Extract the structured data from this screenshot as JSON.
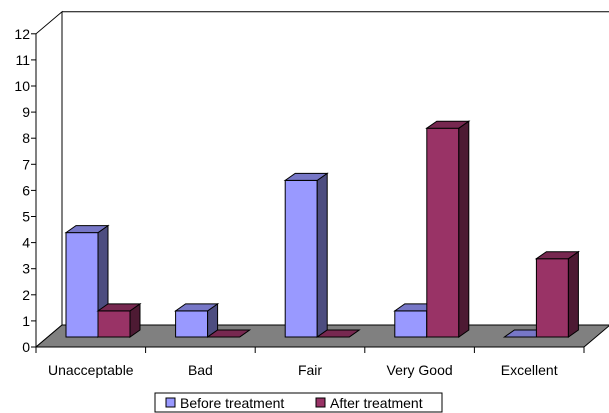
{
  "chart_data": {
    "type": "bar",
    "categories": [
      "Unacceptable",
      "Bad",
      "Fair",
      "Very Good",
      "Excellent"
    ],
    "series": [
      {
        "name": "Before treatment",
        "values": [
          4,
          1,
          6,
          1,
          0
        ],
        "color": "#9999ff"
      },
      {
        "name": "After treatment",
        "values": [
          1,
          0,
          0,
          8,
          3
        ],
        "color": "#993366"
      }
    ],
    "ylim": [
      0,
      12
    ],
    "yticks": [
      0,
      1,
      2,
      3,
      4,
      5,
      6,
      7,
      8,
      9,
      10,
      11,
      12
    ],
    "style": "3d-column",
    "grid": false,
    "legend_position": "bottom",
    "floor_color": "#808080"
  }
}
